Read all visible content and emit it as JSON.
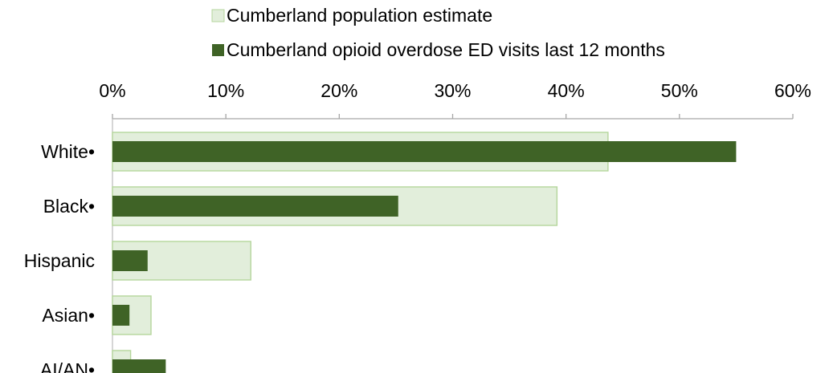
{
  "chart_data": {
    "type": "bar",
    "orientation": "horizontal",
    "categories": [
      "White•",
      "Black•",
      "Hispanic",
      "Asian•",
      "AI/AN•"
    ],
    "series": [
      {
        "name": "Cumberland population estimate",
        "values": [
          43.7,
          39.2,
          12.2,
          3.4,
          1.6
        ],
        "color": "#e2eedb",
        "border_color": "#b5d69c"
      },
      {
        "name": "Cumberland opioid overdose ED visits last 12 months",
        "values": [
          55.0,
          25.2,
          3.1,
          1.5,
          4.7
        ],
        "color": "#3f6326"
      }
    ],
    "x_axis": {
      "min": 0,
      "max": 60,
      "ticks": [
        0,
        10,
        20,
        30,
        40,
        50,
        60
      ],
      "tick_labels": [
        "0%",
        "10%",
        "20%",
        "30%",
        "40%",
        "50%",
        "60%"
      ],
      "position": "top"
    },
    "legend": {
      "placement": "top",
      "entries": [
        "Cumberland population estimate",
        "Cumberland opioid overdose ED visits last 12 months"
      ]
    },
    "grid": false,
    "title": "",
    "xlabel": "",
    "ylabel": ""
  }
}
